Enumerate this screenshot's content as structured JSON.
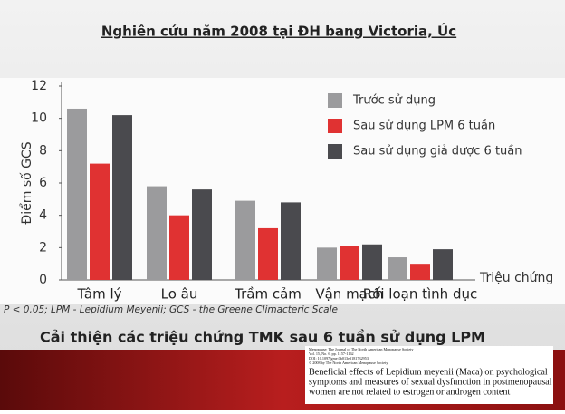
{
  "slide": {
    "title": "Nghiên cứu năm 2008 tại ĐH bang Victoria, Úc",
    "footnote": "P < 0,05; LPM - Lepidium Meyenii; GCS - the Greene Climacteric Scale",
    "caption": "Cải thiện các triệu chứng TMK sau 6 tuần sử dụng LPM",
    "paper": {
      "header": [
        "Menopause: The Journal of The North American Menopause Society",
        "Vol. 15, No. 6, pp. 1157-1162",
        "DOI: 10.1097/gme.0b013e3181732953",
        "© 2008 by The North American Menopause Society"
      ],
      "title": [
        "Beneficial effects of Lepidium meyenii (Maca) on psychological",
        "symptoms and measures of sexual dysfunction in postmenopausal",
        "women are not related to estrogen or androgen content"
      ]
    }
  },
  "chart_data": {
    "type": "bar",
    "y_label": "Điểm số GCS",
    "x_label": "Triệu chứng",
    "categories": [
      "Tâm lý",
      "Lo âu",
      "Trầm cảm",
      "Vận mạch",
      "Rối loạn tình dục"
    ],
    "series": [
      {
        "name": "Trước sử dụng",
        "color": "#9b9b9d",
        "values": [
          10.6,
          5.8,
          4.9,
          2.0,
          1.4
        ]
      },
      {
        "name": "Sau sử dụng LPM 6 tuần",
        "color": "#e03232",
        "values": [
          7.2,
          4.0,
          3.2,
          2.1,
          1.0
        ]
      },
      {
        "name": "Sau sử dụng giả dược 6 tuần",
        "color": "#4a4a4e",
        "values": [
          10.2,
          5.6,
          4.8,
          2.2,
          1.9
        ]
      }
    ],
    "ylim": [
      0,
      12
    ],
    "yticks": [
      0,
      2,
      4,
      6,
      8,
      10,
      12
    ],
    "grid": false,
    "legend": "top-right"
  }
}
